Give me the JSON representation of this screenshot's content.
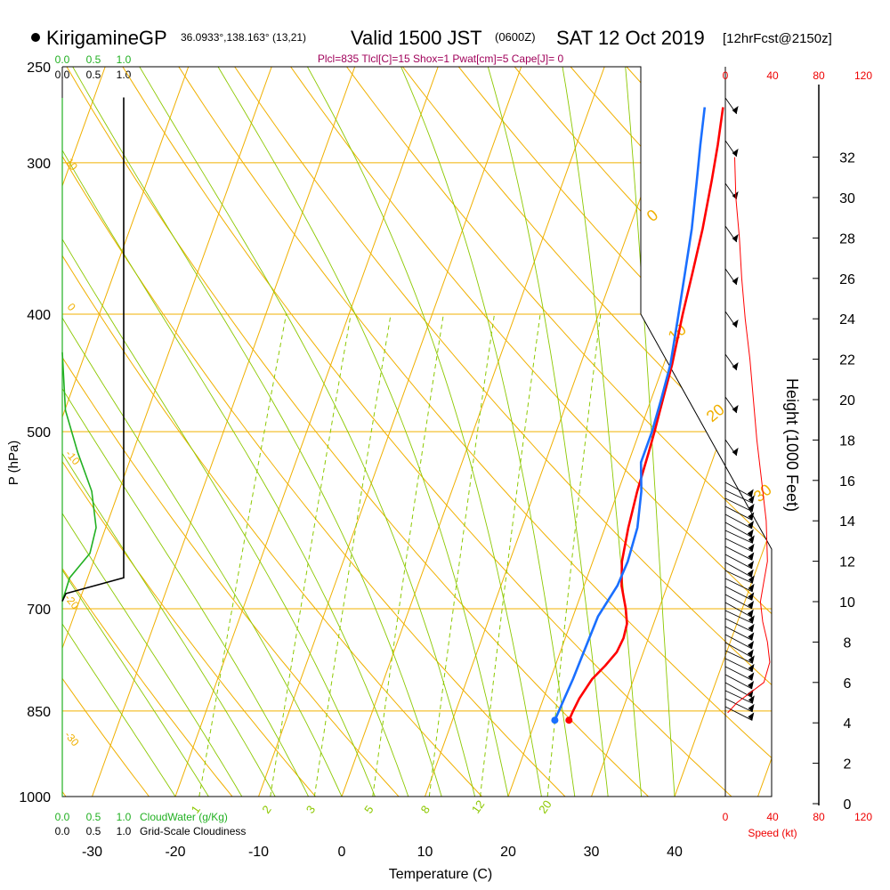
{
  "header": {
    "station": "KirigamineGP",
    "coords": "36.0933°,138.163° (13,21)",
    "valid": "Valid 1500 JST",
    "utc": "(0600Z)",
    "date": "SAT 12 Oct 2019",
    "forecast": "[12hrFcst@2150z]"
  },
  "indices": "Plcl=835 Tlcl[C]=15 Shox=1 Pwat[cm]=5 Cape[J]= 0",
  "cloud_legend": {
    "water_ticks": [
      "0.0",
      "0.5",
      "1.0"
    ],
    "cover_ticks": [
      "0.0",
      "0.5",
      "1.0"
    ],
    "water_label": "CloudWater (g/Kg)",
    "cover_label": "Grid-Scale Cloudiness"
  },
  "colors": {
    "isotherm": "#f0b000",
    "dry_adiabat": "#f0b000",
    "moist_adiabat": "#8cc800",
    "mixing_ratio": "#8cc800",
    "temperature": "#ff0000",
    "dewpoint": "#1a6fff",
    "cloud_water": "#22b022",
    "label_green": "#8cc800",
    "label_red": "#ee0000",
    "title_purple": "#a0005a"
  },
  "chart_data": {
    "type": "line",
    "title": "",
    "xlabel": "Temperature (C)",
    "ylabel": "P (hPa)",
    "y2label": "Height (1000 Feet)",
    "speed_label": "Speed (kt)",
    "xlim": [
      -35,
      45
    ],
    "ylim": [
      1000,
      250
    ],
    "x_ticks": [
      -30,
      -20,
      -10,
      0,
      10,
      20,
      30,
      40
    ],
    "pressure_ticks": [
      250,
      300,
      400,
      500,
      700,
      850,
      1000
    ],
    "pressure_tick_labels": [
      "250",
      "300",
      "400",
      "500",
      "700",
      "850",
      "1000"
    ],
    "height_ticks": [
      0,
      2,
      4,
      6,
      8,
      10,
      12,
      14,
      16,
      18,
      20,
      22,
      24,
      26,
      28,
      30,
      32
    ],
    "speed_ticks": [
      "0",
      "40",
      "80",
      "120"
    ],
    "mixing_ratio_labels": [
      "1",
      "2",
      "3",
      "5",
      "8",
      "12",
      "20"
    ],
    "moist_adiabat_labels": [
      "0",
      "10",
      "20",
      "30"
    ],
    "dry_adiabat_labels": [
      "10",
      "0",
      "-10",
      "-20",
      "-30"
    ],
    "series": [
      {
        "name": "",
        "p": [
          865,
          850,
          830,
          800,
          780,
          760,
          740,
          720,
          700,
          670,
          640,
          600,
          560,
          520,
          500,
          470,
          440,
          400,
          370,
          340,
          310,
          290,
          270
        ],
        "values": [
          24.0,
          24.1,
          24.3,
          25.0,
          26.0,
          26.8,
          27.0,
          26.8,
          26.0,
          24.5,
          23.5,
          22.8,
          22.3,
          22.0,
          21.8,
          21.4,
          21.0,
          20.1,
          19.5,
          18.8,
          17.8,
          17.0,
          16.0
        ]
      },
      {
        "name": "",
        "p": [
          865,
          850,
          830,
          800,
          770,
          740,
          710,
          690,
          670,
          640,
          600,
          560,
          530,
          500,
          470,
          440,
          400,
          370,
          340,
          310,
          290,
          270
        ],
        "values": [
          22.3,
          22.4,
          22.5,
          22.7,
          22.8,
          22.9,
          23.0,
          23.5,
          24.0,
          24.2,
          23.9,
          22.8,
          21.5,
          21.5,
          21.2,
          20.8,
          19.6,
          18.6,
          17.5,
          16.0,
          14.9,
          13.8
        ]
      }
    ],
    "cloud_water": {
      "p": [
        430,
        480,
        520,
        560,
        600,
        630,
        660,
        690
      ],
      "values": [
        0.0,
        0.05,
        0.25,
        0.48,
        0.55,
        0.45,
        0.12,
        0.0
      ]
    },
    "cloudiness": {
      "p": [
        265,
        660,
        680,
        690
      ],
      "values": [
        1.0,
        1.0,
        0.06,
        0.0
      ]
    },
    "wind_speed_profile": {
      "height_kft": [
        4.5,
        5,
        6,
        7,
        8,
        9,
        10,
        11,
        12,
        14,
        16,
        18,
        20,
        22,
        24,
        26,
        28,
        30,
        32
      ],
      "values": [
        2,
        10,
        33,
        38,
        36,
        32,
        30,
        33,
        36,
        35,
        31,
        27,
        24,
        21,
        17,
        14,
        12,
        9,
        8
      ]
    }
  }
}
